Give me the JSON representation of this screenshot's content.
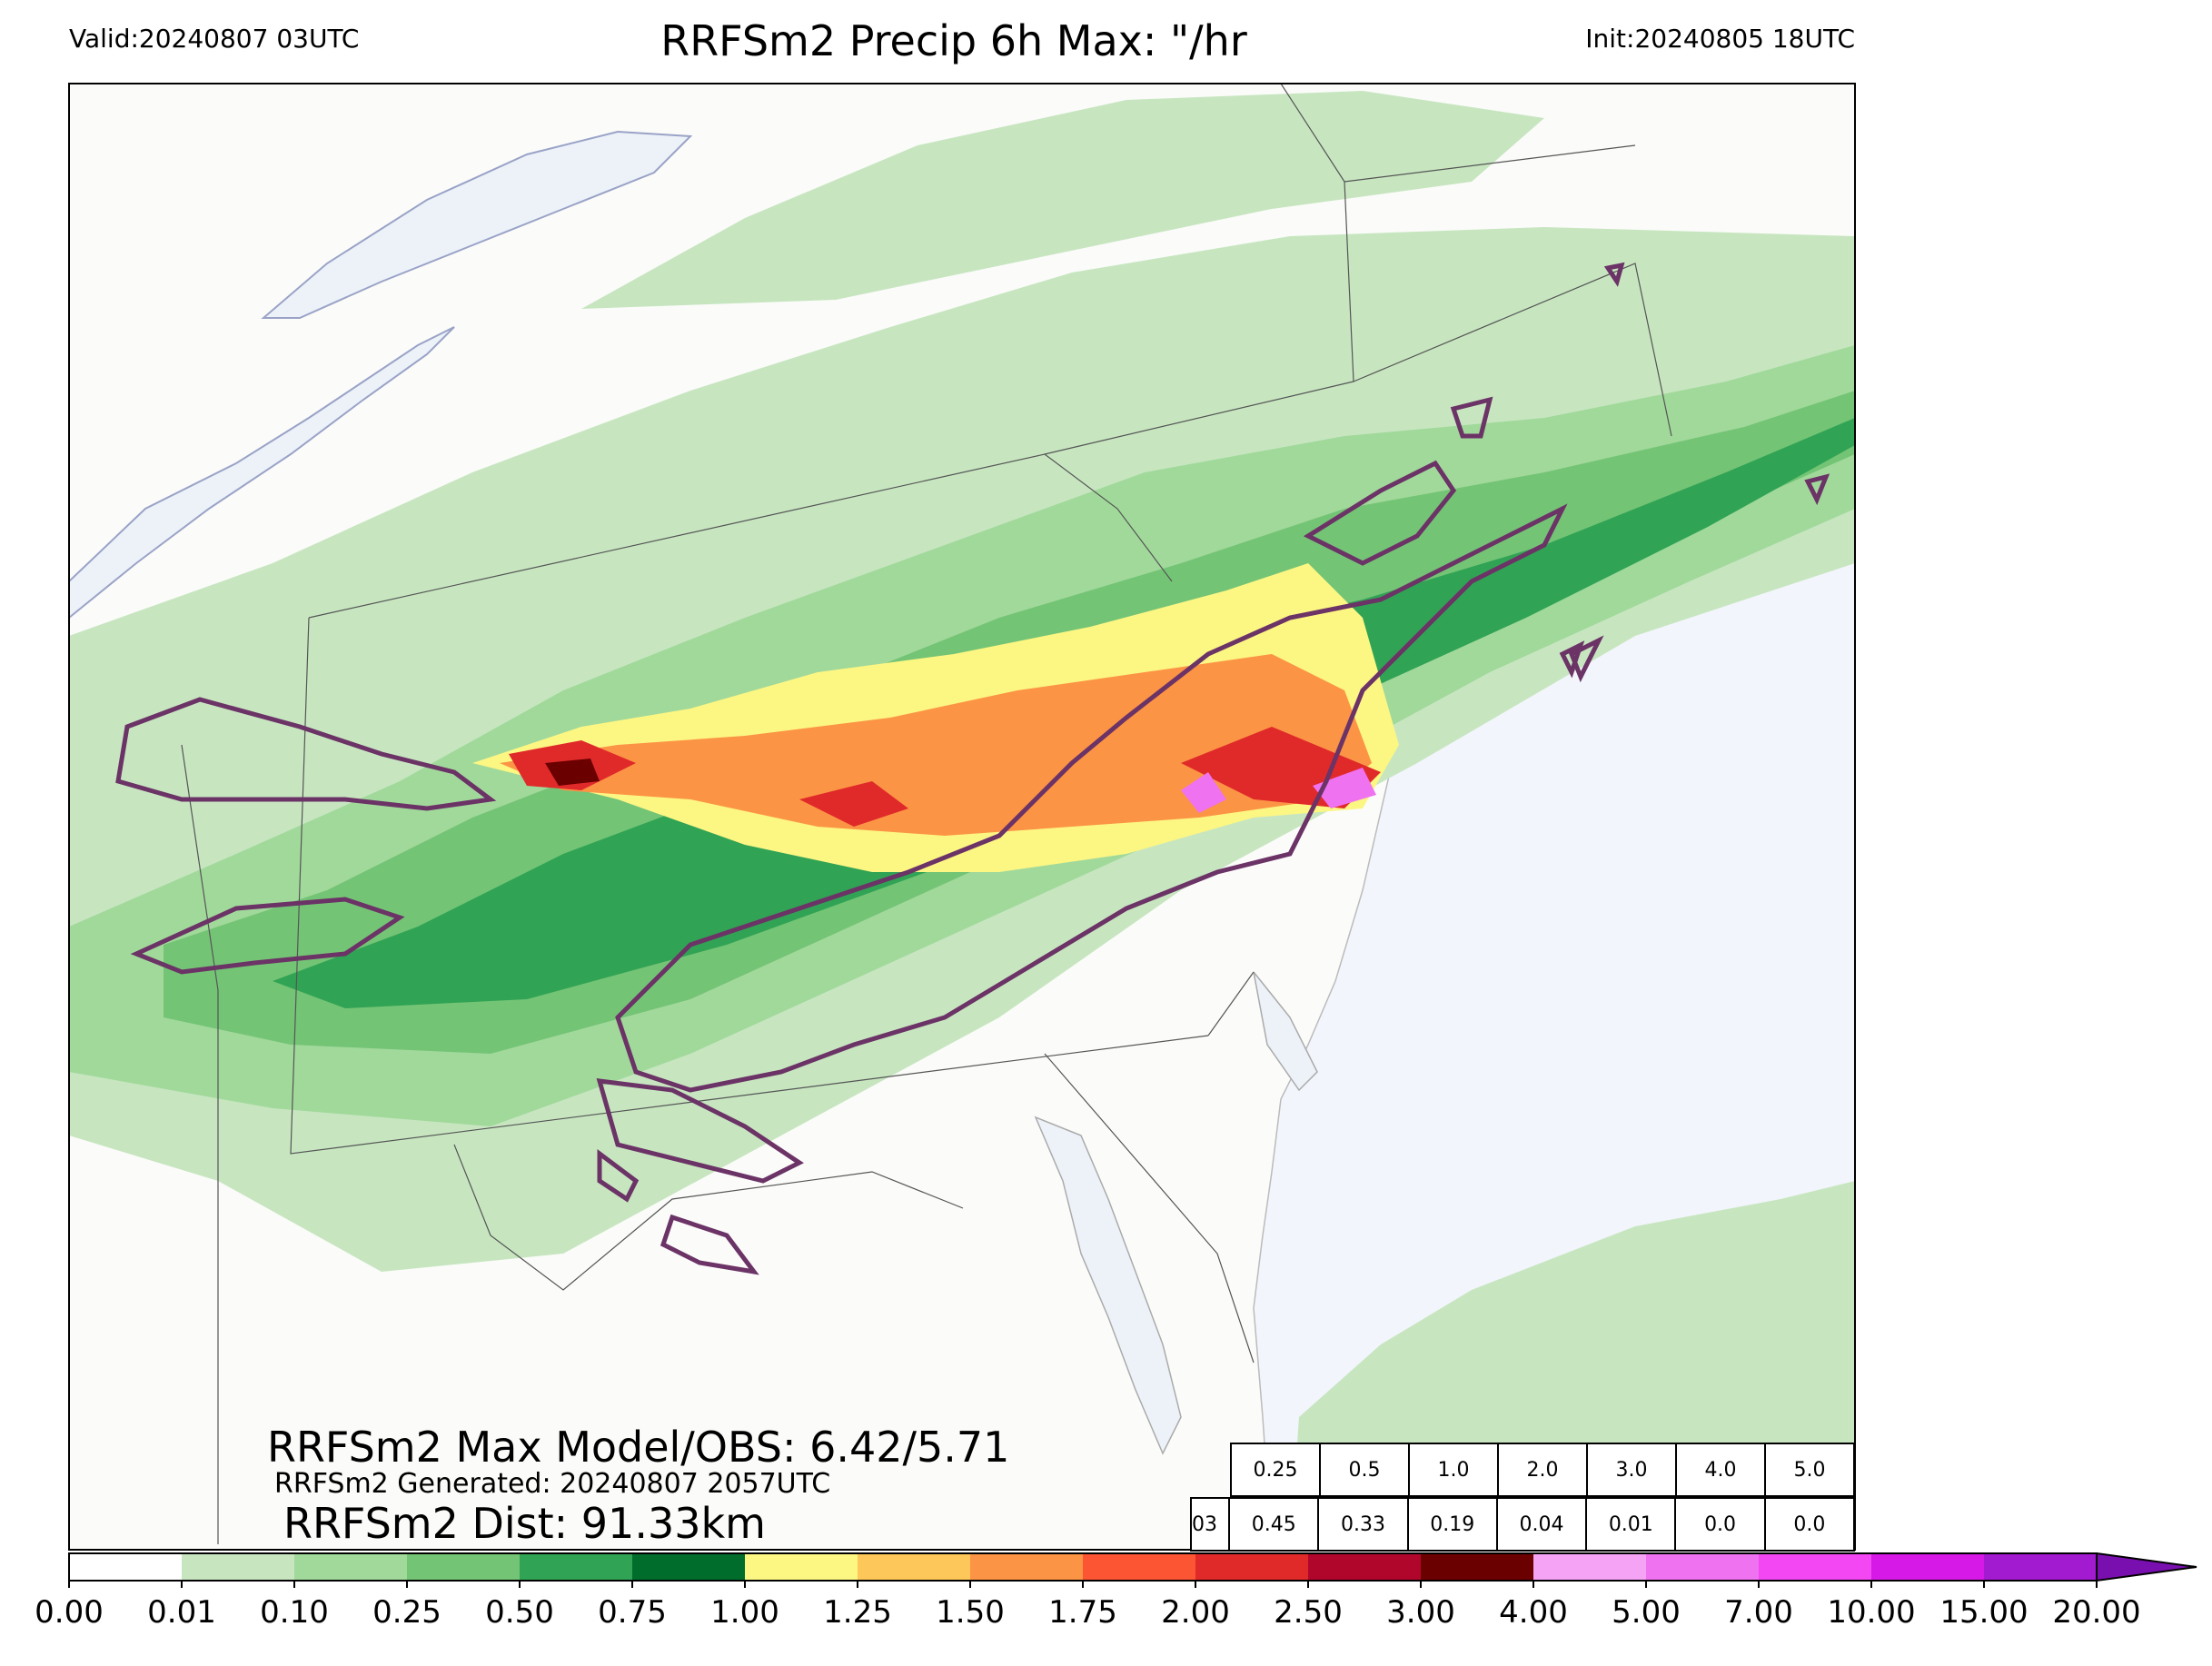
{
  "header": {
    "valid": "Valid:20240807 03UTC",
    "title": "RRFSm2 Precip 6h Max: \"/hr",
    "init": "Init:20240805 18UTC"
  },
  "stats": {
    "max_model_obs": "RRFSm2 Max Model/OBS: 6.42/5.71",
    "generated": "RRFSm2 Generated: 20240807 2057UTC",
    "dist": "RRFSm2 Dist: 91.33km"
  },
  "threshold_table": {
    "thresholds": [
      "0.25",
      "0.5",
      "1.0",
      "2.0",
      "3.0",
      "4.0",
      "5.0"
    ],
    "row_label": "03",
    "values": [
      "0.45",
      "0.33",
      "0.19",
      "0.04",
      "0.01",
      "0.0",
      "0.0"
    ]
  },
  "colorbar": {
    "ticks": [
      "0.00",
      "0.01",
      "0.10",
      "0.25",
      "0.50",
      "0.75",
      "1.00",
      "1.25",
      "1.50",
      "1.75",
      "2.00",
      "2.50",
      "3.00",
      "4.00",
      "5.00",
      "7.00",
      "10.00",
      "15.00",
      "20.00"
    ],
    "colors": [
      "#ffffff",
      "#c7e6c0",
      "#a1d99b",
      "#74c476",
      "#31a354",
      "#006d2c",
      "#fcf683",
      "#fdc859",
      "#fc9445",
      "#fc5533",
      "#e02a2a",
      "#b0062c",
      "#6b0000",
      "#f5a3f5",
      "#ef72f0",
      "#f347f3",
      "#d619e6",
      "#a31bd1"
    ],
    "extend_color": "#7a0fb0"
  },
  "map_colors": {
    "water": "#f2f5fb",
    "land": "#fbfbf9",
    "lake": "#edf2f9",
    "obs_contour": "#6b3366",
    "border": "#555555"
  }
}
